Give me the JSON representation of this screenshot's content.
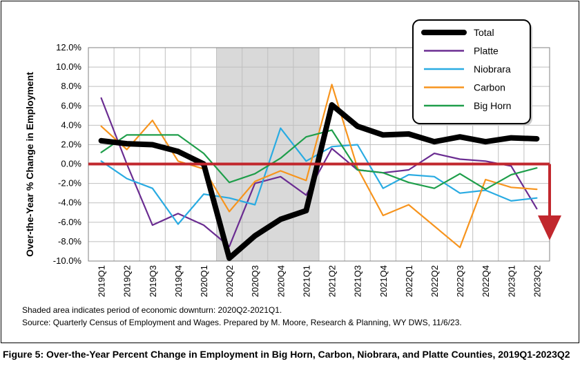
{
  "chart_data": {
    "type": "line",
    "ylabel": "Over-the-Year % Change in Employment",
    "ylim": [
      -10,
      12
    ],
    "yticks": [
      "12.0%",
      "10.0%",
      "8.0%",
      "6.0%",
      "4.0%",
      "2.0%",
      "0.0%",
      "-2.0%",
      "-4.0%",
      "-6.0%",
      "-8.0%",
      "-10.0%"
    ],
    "categories": [
      "2019Q1",
      "2019Q2",
      "2019Q3",
      "2019Q4",
      "2020Q1",
      "2020Q2",
      "2020Q3",
      "2020Q4",
      "2021Q1",
      "2021Q2",
      "2021Q3",
      "2021Q4",
      "2022Q1",
      "2022Q2",
      "2022Q3",
      "2022Q4",
      "2023Q1",
      "2023Q2"
    ],
    "shaded_region": {
      "from": "2020Q2",
      "to": "2021Q1",
      "color": "#d9d9d9"
    },
    "legend_position": "top-right",
    "grid": true,
    "series": [
      {
        "name": "Platte",
        "color": "#6a2c91",
        "values": [
          6.8,
          0.0,
          -6.3,
          -5.1,
          -6.3,
          -8.5,
          -2.0,
          -1.3,
          -3.2,
          1.6,
          -0.6,
          -0.9,
          -0.6,
          1.1,
          0.5,
          0.3,
          -0.2,
          -4.6
        ]
      },
      {
        "name": "Niobrara",
        "color": "#29abe2",
        "values": [
          0.3,
          -1.5,
          -2.5,
          -6.2,
          -3.1,
          -3.5,
          -4.2,
          3.7,
          0.3,
          1.8,
          2.0,
          -2.5,
          -1.1,
          -1.3,
          -3.0,
          -2.7,
          -3.8,
          -3.5
        ]
      },
      {
        "name": "Carbon",
        "color": "#f7941d",
        "values": [
          3.9,
          1.5,
          4.5,
          0.3,
          -0.5,
          -4.9,
          -1.8,
          -0.7,
          -1.7,
          8.2,
          -0.4,
          -5.3,
          -4.2,
          -6.4,
          -8.6,
          -1.6,
          -2.4,
          -2.6
        ]
      },
      {
        "name": "Big Horn",
        "color": "#1e9e4a",
        "values": [
          1.2,
          3.0,
          3.0,
          3.0,
          1.1,
          -1.9,
          -1.0,
          0.6,
          2.8,
          3.5,
          -0.6,
          -0.9,
          -1.9,
          -2.5,
          -1.0,
          -2.6,
          -1.1,
          -0.4
        ]
      },
      {
        "name": "Total",
        "color": "#000000",
        "values": [
          2.4,
          2.1,
          2.0,
          1.3,
          0.0,
          -9.7,
          -7.4,
          -5.7,
          -4.8,
          6.1,
          3.9,
          3.0,
          3.1,
          2.3,
          2.8,
          2.3,
          2.7,
          2.6
        ]
      }
    ],
    "legend_order": [
      "Total",
      "Platte",
      "Niobrara",
      "Carbon",
      "Big Horn"
    ],
    "zero_line_color": "#c1272d"
  },
  "notes": {
    "shaded": "Shaded area indicates period of economic downturn: 2020Q2-2021Q1.",
    "source": "Source: Quarterly Census of Employment and Wages. Prepared by M. Moore, Research & Planning, WY DWS, 11/6/23."
  },
  "caption": "Figure 5: Over-the-Year Percent Change in Employment in Big Horn, Carbon, Niobrara, and Platte Counties, 2019Q1-2023Q2"
}
